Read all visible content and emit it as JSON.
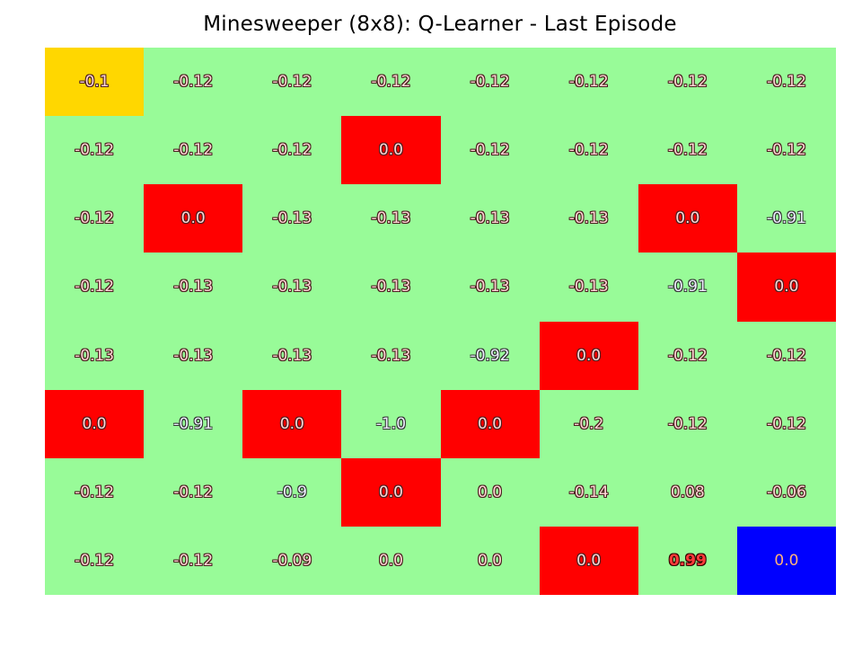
{
  "title": "Minesweeper (8x8): Q-Learner - Last Episode",
  "colors": {
    "safe": "#98fb98",
    "mine": "#ff0000",
    "current": "#ffd700",
    "goal": "#0000ff"
  },
  "board": {
    "rows": 8,
    "cols": 8,
    "cells": [
      [
        {
          "v": "-0.1",
          "t": "current"
        },
        {
          "v": "-0.12",
          "t": "safe"
        },
        {
          "v": "-0.12",
          "t": "safe"
        },
        {
          "v": "-0.12",
          "t": "safe"
        },
        {
          "v": "-0.12",
          "t": "safe"
        },
        {
          "v": "-0.12",
          "t": "safe"
        },
        {
          "v": "-0.12",
          "t": "safe"
        },
        {
          "v": "-0.12",
          "t": "safe"
        }
      ],
      [
        {
          "v": "-0.12",
          "t": "safe"
        },
        {
          "v": "-0.12",
          "t": "safe"
        },
        {
          "v": "-0.12",
          "t": "safe"
        },
        {
          "v": "0.0",
          "t": "mine"
        },
        {
          "v": "-0.12",
          "t": "safe"
        },
        {
          "v": "-0.12",
          "t": "safe"
        },
        {
          "v": "-0.12",
          "t": "safe"
        },
        {
          "v": "-0.12",
          "t": "safe"
        }
      ],
      [
        {
          "v": "-0.12",
          "t": "safe"
        },
        {
          "v": "0.0",
          "t": "mine"
        },
        {
          "v": "-0.13",
          "t": "safe"
        },
        {
          "v": "-0.13",
          "t": "safe"
        },
        {
          "v": "-0.13",
          "t": "safe"
        },
        {
          "v": "-0.13",
          "t": "safe"
        },
        {
          "v": "0.0",
          "t": "mine"
        },
        {
          "v": "-0.91",
          "t": "safe"
        }
      ],
      [
        {
          "v": "-0.12",
          "t": "safe"
        },
        {
          "v": "-0.13",
          "t": "safe"
        },
        {
          "v": "-0.13",
          "t": "safe"
        },
        {
          "v": "-0.13",
          "t": "safe"
        },
        {
          "v": "-0.13",
          "t": "safe"
        },
        {
          "v": "-0.13",
          "t": "safe"
        },
        {
          "v": "-0.91",
          "t": "safe"
        },
        {
          "v": "0.0",
          "t": "mine"
        }
      ],
      [
        {
          "v": "-0.13",
          "t": "safe"
        },
        {
          "v": "-0.13",
          "t": "safe"
        },
        {
          "v": "-0.13",
          "t": "safe"
        },
        {
          "v": "-0.13",
          "t": "safe"
        },
        {
          "v": "-0.92",
          "t": "safe"
        },
        {
          "v": "0.0",
          "t": "mine"
        },
        {
          "v": "-0.12",
          "t": "safe"
        },
        {
          "v": "-0.12",
          "t": "safe"
        }
      ],
      [
        {
          "v": "0.0",
          "t": "mine"
        },
        {
          "v": "-0.91",
          "t": "safe"
        },
        {
          "v": "0.0",
          "t": "mine"
        },
        {
          "v": "-1.0",
          "t": "safe"
        },
        {
          "v": "0.0",
          "t": "mine"
        },
        {
          "v": "-0.2",
          "t": "safe"
        },
        {
          "v": "-0.12",
          "t": "safe"
        },
        {
          "v": "-0.12",
          "t": "safe"
        }
      ],
      [
        {
          "v": "-0.12",
          "t": "safe"
        },
        {
          "v": "-0.12",
          "t": "safe"
        },
        {
          "v": "-0.9",
          "t": "safe"
        },
        {
          "v": "0.0",
          "t": "mine"
        },
        {
          "v": "0.0",
          "t": "safe"
        },
        {
          "v": "-0.14",
          "t": "safe"
        },
        {
          "v": "0.08",
          "t": "safe"
        },
        {
          "v": "-0.06",
          "t": "safe"
        }
      ],
      [
        {
          "v": "-0.12",
          "t": "safe"
        },
        {
          "v": "-0.12",
          "t": "safe"
        },
        {
          "v": "-0.09",
          "t": "safe"
        },
        {
          "v": "0.0",
          "t": "safe"
        },
        {
          "v": "0.0",
          "t": "safe"
        },
        {
          "v": "0.0",
          "t": "mine"
        },
        {
          "v": "0.99",
          "t": "safe"
        },
        {
          "v": "0.0",
          "t": "goal"
        }
      ]
    ]
  }
}
